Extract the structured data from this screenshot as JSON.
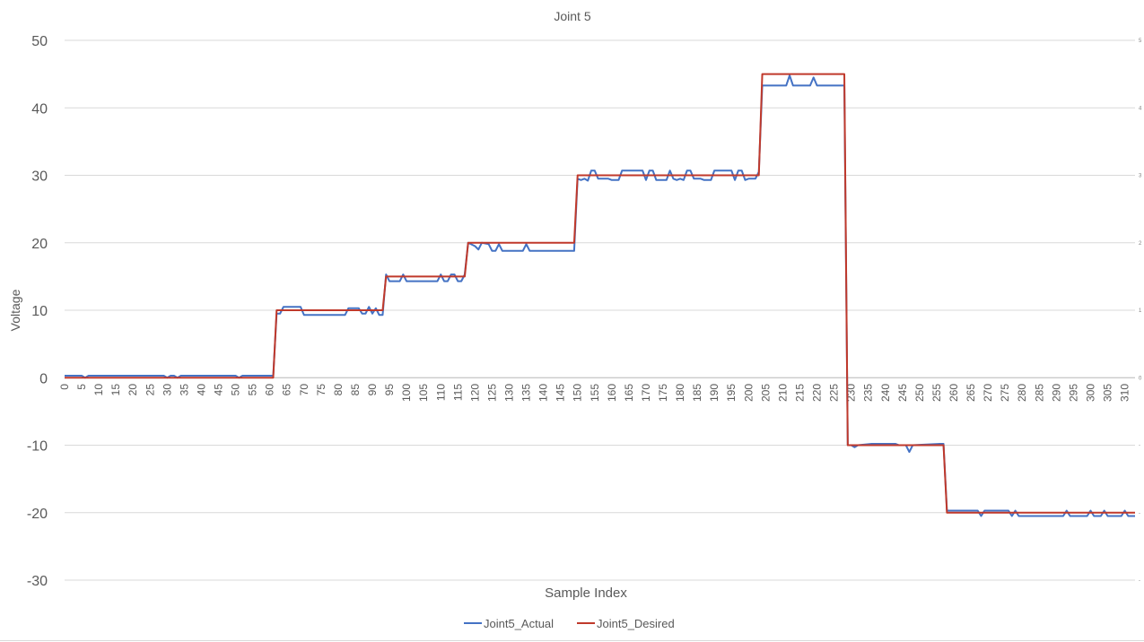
{
  "chart_data": {
    "type": "line",
    "title": "Joint 5",
    "xlabel": "Sample Index",
    "ylabel": "Voltage",
    "ylim": [
      -30,
      50
    ],
    "yticks": [
      50,
      40,
      30,
      20,
      10,
      0,
      -10,
      -20,
      -30
    ],
    "xlim": [
      0,
      313
    ],
    "xtick_step": 5,
    "grid": true,
    "legend_position": "bottom",
    "series": [
      {
        "name": "Joint5_Actual",
        "color": "#4472C4",
        "points": [
          [
            0,
            0.3
          ],
          [
            5,
            0.3
          ],
          [
            6,
            0.0
          ],
          [
            7,
            0.3
          ],
          [
            29,
            0.3
          ],
          [
            30,
            0.0
          ],
          [
            31,
            0.3
          ],
          [
            32,
            0.3
          ],
          [
            33,
            0.0
          ],
          [
            34,
            0.3
          ],
          [
            50,
            0.3
          ],
          [
            51,
            0.0
          ],
          [
            52,
            0.3
          ],
          [
            61,
            0.3
          ],
          [
            62,
            9.5
          ],
          [
            63,
            9.5
          ],
          [
            64,
            10.5
          ],
          [
            69,
            10.5
          ],
          [
            70,
            9.3
          ],
          [
            82,
            9.3
          ],
          [
            83,
            10.3
          ],
          [
            86,
            10.3
          ],
          [
            87,
            9.5
          ],
          [
            88,
            9.5
          ],
          [
            89,
            10.5
          ],
          [
            90,
            9.5
          ],
          [
            91,
            10.3
          ],
          [
            92,
            9.3
          ],
          [
            93,
            9.3
          ],
          [
            94,
            15.3
          ],
          [
            95,
            14.3
          ],
          [
            98,
            14.3
          ],
          [
            99,
            15.3
          ],
          [
            100,
            14.3
          ],
          [
            109,
            14.3
          ],
          [
            110,
            15.3
          ],
          [
            111,
            14.3
          ],
          [
            112,
            14.3
          ],
          [
            113,
            15.3
          ],
          [
            114,
            15.3
          ],
          [
            115,
            14.3
          ],
          [
            116,
            14.3
          ],
          [
            117,
            15.3
          ],
          [
            118,
            20.0
          ],
          [
            120,
            19.5
          ],
          [
            121,
            19.0
          ],
          [
            122,
            20.0
          ],
          [
            124,
            19.8
          ],
          [
            125,
            18.8
          ],
          [
            126,
            18.8
          ],
          [
            127,
            19.8
          ],
          [
            128,
            18.8
          ],
          [
            134,
            18.8
          ],
          [
            135,
            19.8
          ],
          [
            136,
            18.8
          ],
          [
            149,
            18.8
          ],
          [
            150,
            29.5
          ],
          [
            151,
            29.3
          ],
          [
            152,
            29.5
          ],
          [
            153,
            29.2
          ],
          [
            154,
            30.7
          ],
          [
            155,
            30.7
          ],
          [
            156,
            29.5
          ],
          [
            159,
            29.5
          ],
          [
            160,
            29.3
          ],
          [
            162,
            29.3
          ],
          [
            163,
            30.7
          ],
          [
            169,
            30.7
          ],
          [
            170,
            29.3
          ],
          [
            171,
            30.7
          ],
          [
            172,
            30.7
          ],
          [
            173,
            29.3
          ],
          [
            176,
            29.3
          ],
          [
            177,
            30.7
          ],
          [
            178,
            29.5
          ],
          [
            179,
            29.3
          ],
          [
            180,
            29.5
          ],
          [
            181,
            29.3
          ],
          [
            182,
            30.7
          ],
          [
            183,
            30.7
          ],
          [
            184,
            29.5
          ],
          [
            186,
            29.5
          ],
          [
            187,
            29.3
          ],
          [
            189,
            29.3
          ],
          [
            190,
            30.7
          ],
          [
            195,
            30.7
          ],
          [
            196,
            29.3
          ],
          [
            197,
            30.7
          ],
          [
            198,
            30.7
          ],
          [
            199,
            29.3
          ],
          [
            200,
            29.5
          ],
          [
            202,
            29.5
          ],
          [
            203,
            30.5
          ],
          [
            204,
            43.3
          ],
          [
            211,
            43.3
          ],
          [
            212,
            44.8
          ],
          [
            213,
            43.3
          ],
          [
            218,
            43.3
          ],
          [
            219,
            44.5
          ],
          [
            220,
            43.3
          ],
          [
            228,
            43.3
          ],
          [
            229,
            -10.0
          ],
          [
            230,
            -10.0
          ],
          [
            231,
            -10.3
          ],
          [
            232,
            -10.0
          ],
          [
            236,
            -9.8
          ],
          [
            243,
            -9.8
          ],
          [
            244,
            -10.0
          ],
          [
            246,
            -10.0
          ],
          [
            247,
            -11.0
          ],
          [
            248,
            -10.0
          ],
          [
            256,
            -9.8
          ],
          [
            257,
            -9.8
          ],
          [
            258,
            -19.7
          ],
          [
            267,
            -19.7
          ],
          [
            268,
            -20.5
          ],
          [
            269,
            -19.7
          ],
          [
            276,
            -19.7
          ],
          [
            277,
            -20.5
          ],
          [
            278,
            -19.7
          ],
          [
            279,
            -20.5
          ],
          [
            292,
            -20.5
          ],
          [
            293,
            -19.7
          ],
          [
            294,
            -20.5
          ],
          [
            299,
            -20.5
          ],
          [
            300,
            -19.7
          ],
          [
            301,
            -20.5
          ],
          [
            303,
            -20.5
          ],
          [
            304,
            -19.7
          ],
          [
            305,
            -20.5
          ],
          [
            309,
            -20.5
          ],
          [
            310,
            -19.7
          ],
          [
            311,
            -20.5
          ],
          [
            313,
            -20.5
          ]
        ]
      },
      {
        "name": "Joint5_Desired",
        "color": "#C0392B",
        "points": [
          [
            0,
            0
          ],
          [
            61,
            0
          ],
          [
            62,
            10
          ],
          [
            93,
            10
          ],
          [
            94,
            15
          ],
          [
            117,
            15
          ],
          [
            118,
            20
          ],
          [
            149,
            20
          ],
          [
            150,
            30
          ],
          [
            203,
            30
          ],
          [
            204,
            45
          ],
          [
            228,
            45
          ],
          [
            229,
            -10
          ],
          [
            257,
            -10
          ],
          [
            258,
            -20
          ],
          [
            313,
            -20
          ]
        ]
      }
    ]
  }
}
